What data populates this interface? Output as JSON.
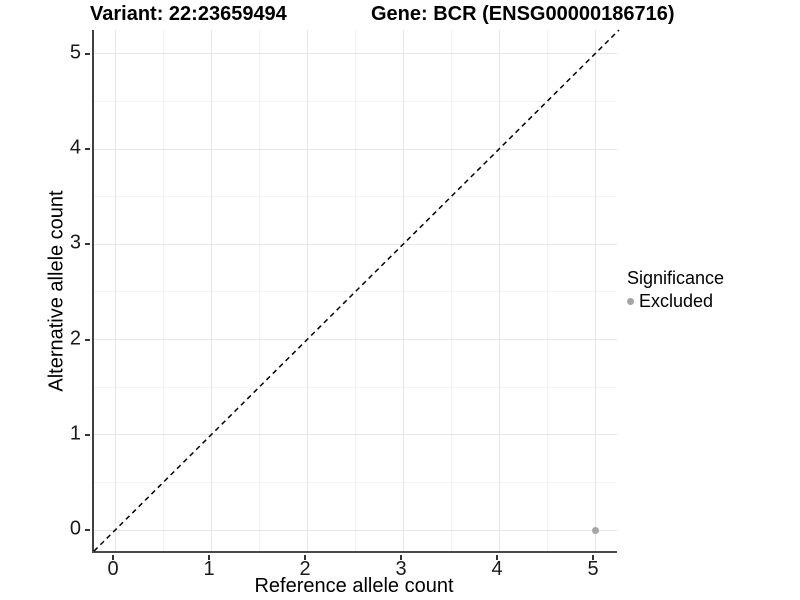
{
  "chart_data": {
    "type": "scatter",
    "title_left": "Variant: 22:23659494",
    "title_right": "Gene: BCR (ENSG00000186716)",
    "xlabel": "Reference allele count",
    "ylabel": "Alternative allele count",
    "xlim": [
      -0.22,
      5.25
    ],
    "ylim": [
      -0.24,
      5.25
    ],
    "xticks": [
      0,
      1,
      2,
      3,
      4,
      5
    ],
    "yticks": [
      0,
      1,
      2,
      3,
      4,
      5
    ],
    "xticks_minor": [
      0.5,
      1.5,
      2.5,
      3.5,
      4.5
    ],
    "yticks_minor": [
      0.5,
      1.5,
      2.5,
      3.5,
      4.5
    ],
    "grid": "major+minor",
    "reference_line": {
      "type": "identity y=x",
      "style": "dashed",
      "color": "#000000"
    },
    "series": [
      {
        "name": "Excluded",
        "color": "#a5a5a5",
        "points": [
          {
            "x": 5,
            "y": 0
          }
        ]
      }
    ],
    "legend": {
      "title": "Significance",
      "position": "right",
      "items": [
        {
          "label": "Excluded",
          "color": "#a5a5a5"
        }
      ]
    },
    "colors": {
      "grid_major": "#e6e6e6",
      "grid_minor": "#f4f4f4",
      "axis_line": "#404040",
      "tick_text": "#1a1a1a"
    }
  }
}
